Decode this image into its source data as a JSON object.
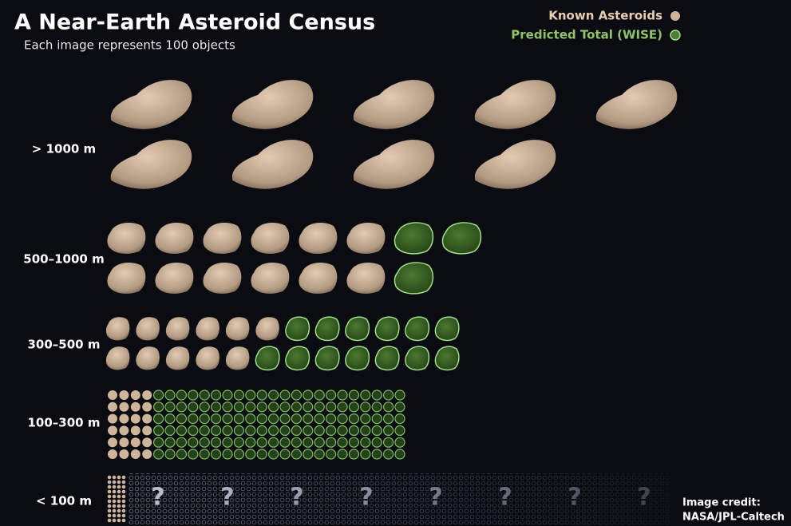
{
  "chart_data": {
    "type": "pictograph",
    "title": "A Near-Earth Asteroid Census",
    "subtitle": "Each image represents 100 objects",
    "categories": [
      "> 1000 m",
      "500–1000 m",
      "300–500 m",
      "100–300 m",
      "< 100 m"
    ],
    "series": [
      {
        "name": "Known Asteroids",
        "color": "#cdb49a",
        "values": [
          9,
          12,
          11,
          24,
          40
        ]
      },
      {
        "name": "Predicted Total (WISE)",
        "color": "#4f7d34",
        "values": [
          0.8,
          3,
          13,
          132,
          null
        ]
      }
    ],
    "unknown_label": "?",
    "credit": [
      "Image credit:",
      "NASA/JPL-Caltech"
    ]
  }
}
